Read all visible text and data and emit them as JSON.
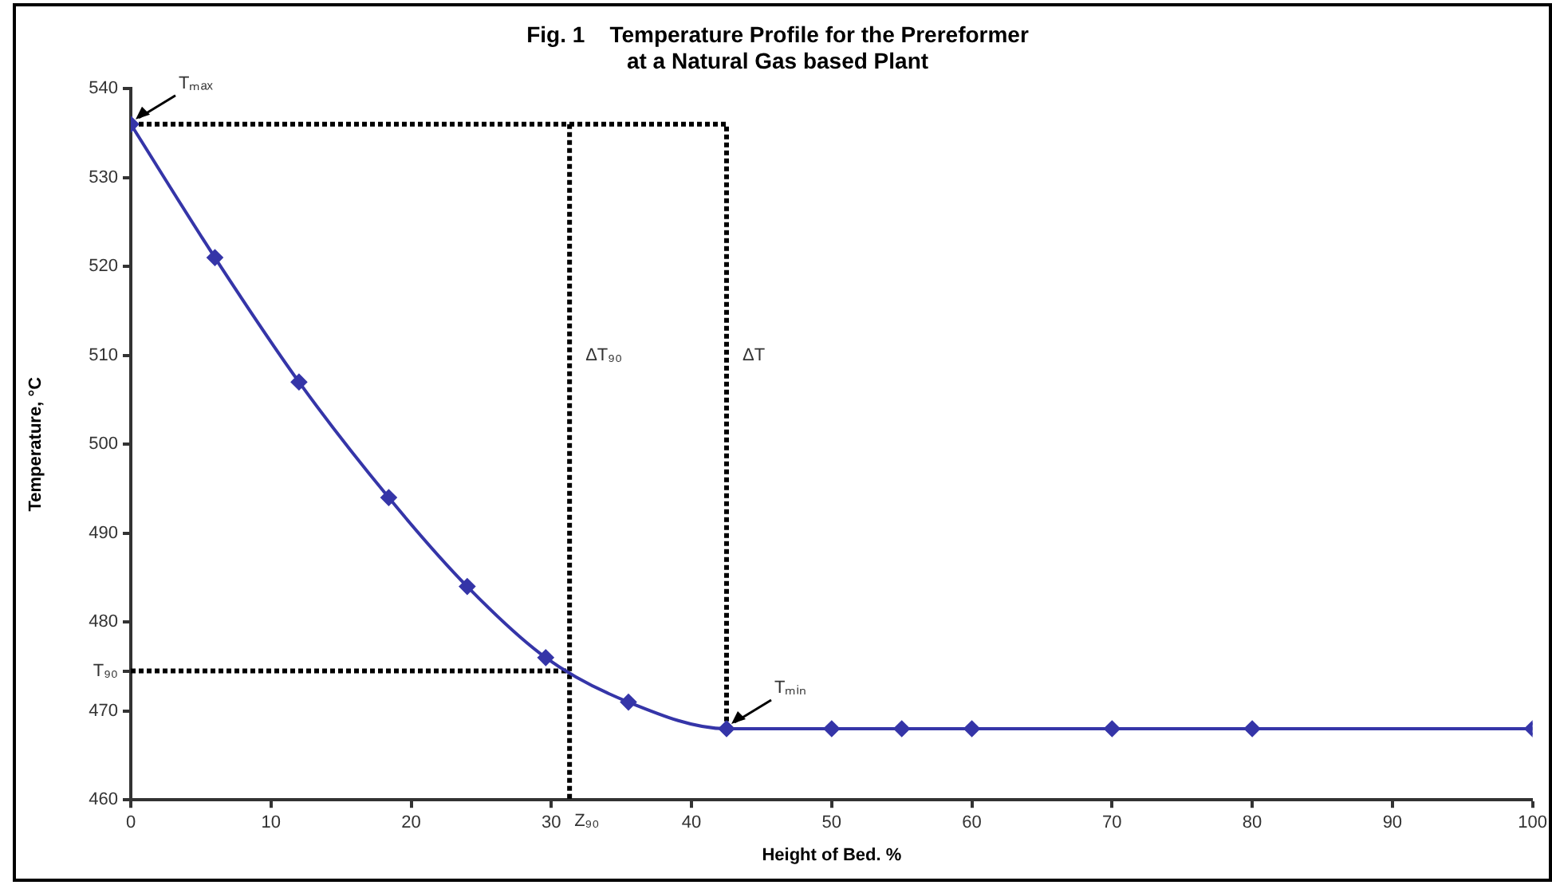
{
  "chart_data": {
    "type": "line",
    "title": "Fig. 1    Temperature Profile for the Prereformer\nat a Natural Gas based Plant",
    "xlabel": "Height of Bed. %",
    "ylabel": "Temperature, °C",
    "xlim": [
      0,
      100
    ],
    "ylim": [
      460,
      540
    ],
    "xticks": [
      0,
      10,
      20,
      30,
      40,
      50,
      60,
      70,
      80,
      90,
      100
    ],
    "yticks": [
      460,
      470,
      {
        "value": 474.5,
        "label": "T₉₀"
      },
      480,
      490,
      500,
      510,
      520,
      530,
      540
    ],
    "series": [
      {
        "type": "line",
        "color": "#3535a8",
        "marker": "diamond",
        "line_style": "solid",
        "x": [
          0,
          6,
          12,
          18.4,
          24,
          29.6,
          35.5,
          42.5,
          50,
          55,
          60,
          70,
          80,
          100
        ],
        "values": [
          536,
          521,
          507,
          494,
          484,
          476,
          471,
          468,
          468,
          468,
          468,
          468,
          468,
          468
        ]
      },
      {
        "type": "line",
        "color": "#000000",
        "marker": "none",
        "line_style": "dotted",
        "x": [
          0,
          42.5,
          42.5
        ],
        "values": [
          536,
          536,
          468
        ]
      },
      {
        "type": "line",
        "color": "#000000",
        "marker": "none",
        "line_style": "dotted",
        "x": [
          31.3,
          31.3
        ],
        "values": [
          536,
          460
        ]
      },
      {
        "type": "line",
        "color": "#000000",
        "marker": "none",
        "line_style": "dotted",
        "x": [
          0,
          31.3
        ],
        "values": [
          474.5,
          474.5
        ]
      }
    ],
    "annotations": [
      {
        "text": "Tₘₐₓ",
        "x": 0,
        "y": 536
      },
      {
        "text": "ΔT₉₀",
        "x": 31.3,
        "y": 510
      },
      {
        "text": "ΔT",
        "x": 42.5,
        "y": 510
      },
      {
        "text": "Tₘᵢₙ",
        "x": 42.5,
        "y": 468
      },
      {
        "text": "Z₉₀",
        "x": 31.3,
        "y": 460
      }
    ]
  }
}
